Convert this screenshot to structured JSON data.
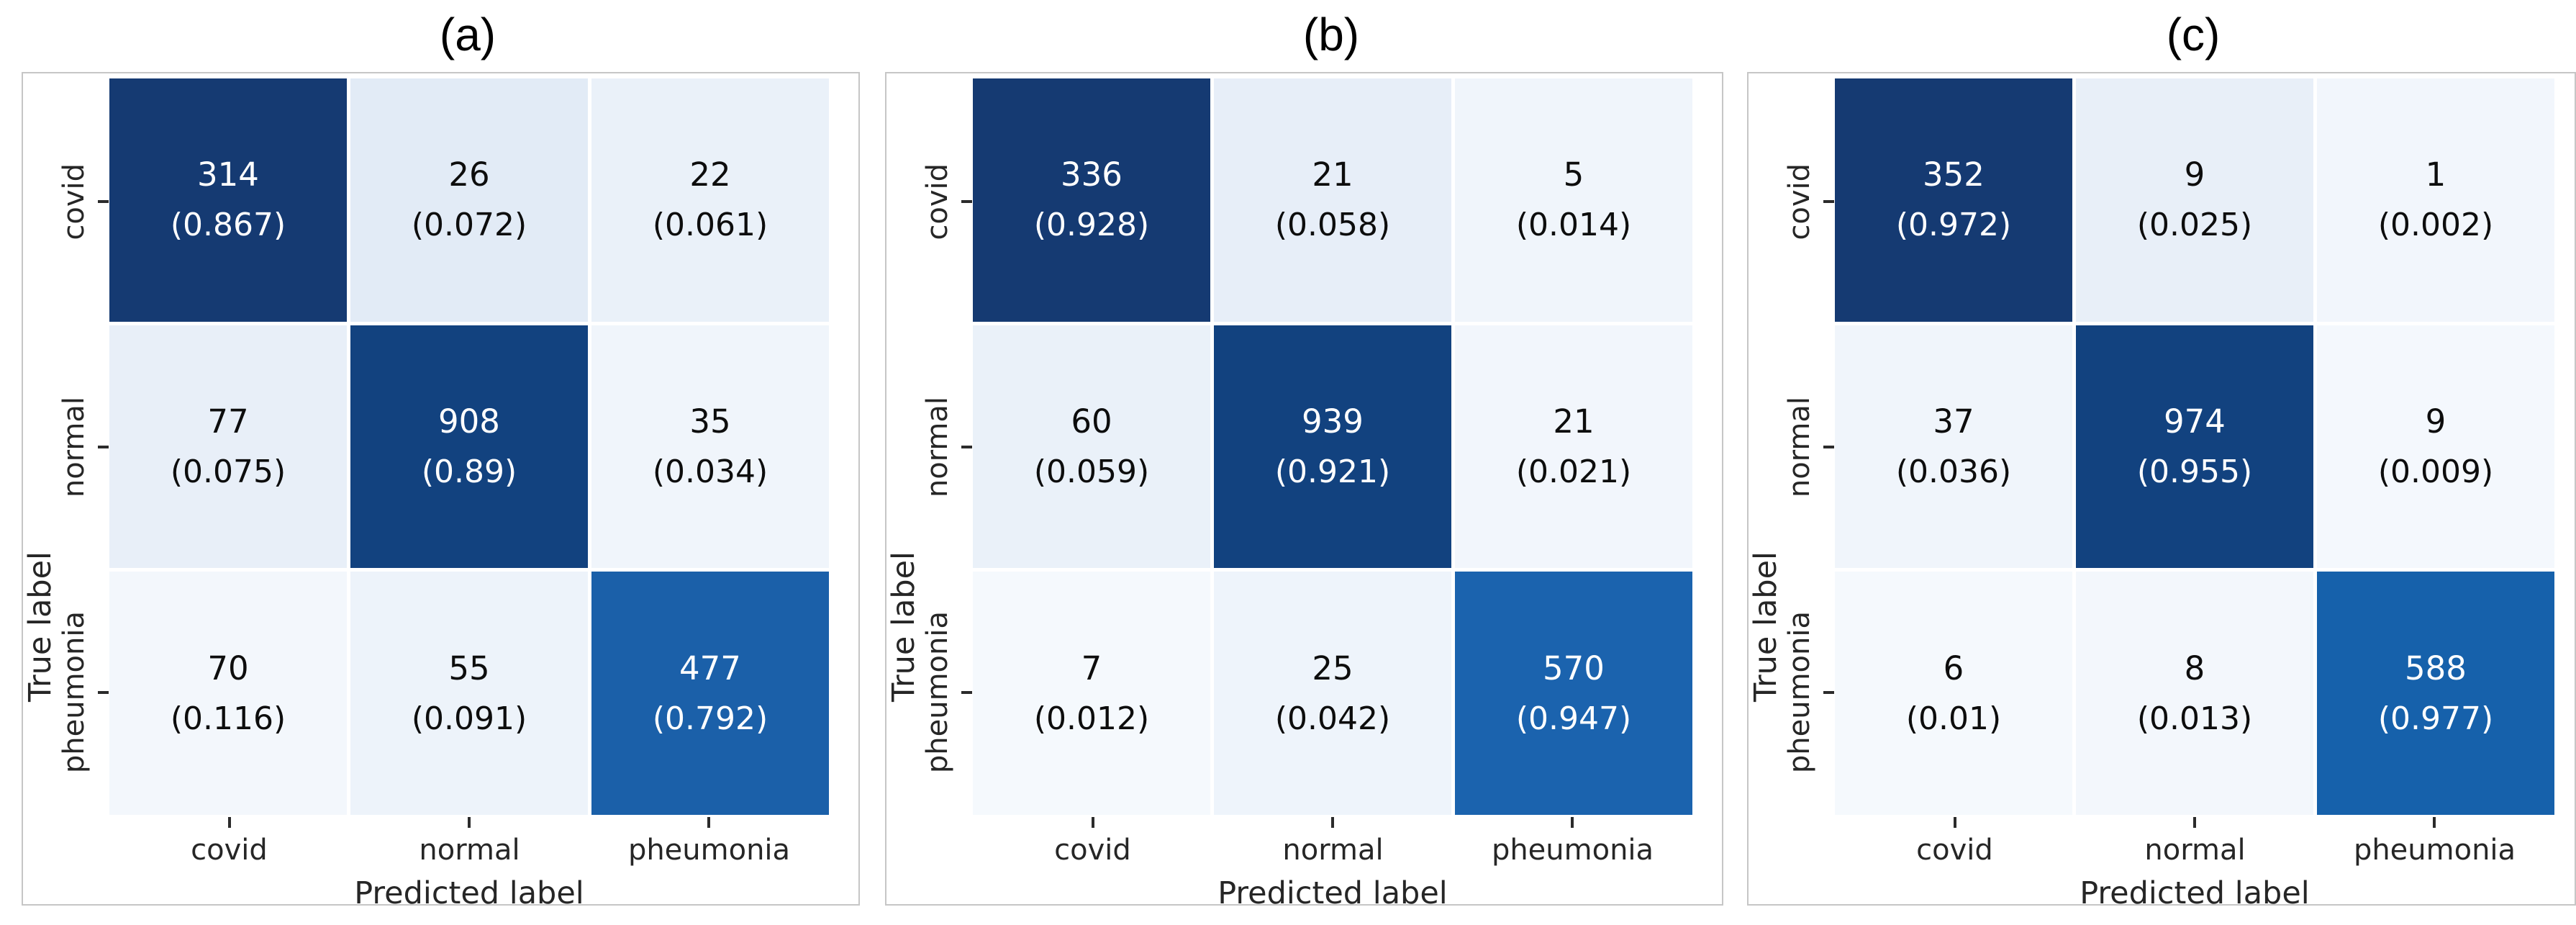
{
  "figure": {
    "background": "#ffffff",
    "panel_border_color": "#c6c6c6",
    "tick_color": "#2b2b2b",
    "axis_text_color": "#262626"
  },
  "axes": {
    "x_label": "Predicted label",
    "y_label": "True label",
    "classes": [
      "covid",
      "normal",
      "pheumonia"
    ]
  },
  "panels": [
    {
      "title": "(a)",
      "x_label": "Predicted label",
      "y_label": "True label",
      "x_ticks": [
        "covid",
        "normal",
        "pheumonia"
      ],
      "y_ticks": [
        "covid",
        "normal",
        "pheumonia"
      ],
      "cells": [
        [
          {
            "count": "314",
            "prop": "(0.867)",
            "bg": "#153a72",
            "fg": "#ffffff"
          },
          {
            "count": "26",
            "prop": "(0.072)",
            "bg": "#e2ebf6",
            "fg": "#0d0d0d"
          },
          {
            "count": "22",
            "prop": "(0.061)",
            "bg": "#eaf1f9",
            "fg": "#0d0d0d"
          }
        ],
        [
          {
            "count": "77",
            "prop": "(0.075)",
            "bg": "#e8eff8",
            "fg": "#0d0d0d"
          },
          {
            "count": "908",
            "prop": "(0.89)",
            "bg": "#12427f",
            "fg": "#ffffff"
          },
          {
            "count": "35",
            "prop": "(0.034)",
            "bg": "#f0f5fb",
            "fg": "#0d0d0d"
          }
        ],
        [
          {
            "count": "70",
            "prop": "(0.116)",
            "bg": "#f3f7fc",
            "fg": "#0d0d0d"
          },
          {
            "count": "55",
            "prop": "(0.091)",
            "bg": "#edf3fa",
            "fg": "#0d0d0d"
          },
          {
            "count": "477",
            "prop": "(0.792)",
            "bg": "#1b60a9",
            "fg": "#ffffff"
          }
        ]
      ]
    },
    {
      "title": "(b)",
      "x_label": "Predicted label",
      "y_label": "True label",
      "x_ticks": [
        "covid",
        "normal",
        "pheumonia"
      ],
      "y_ticks": [
        "covid",
        "normal",
        "pheumonia"
      ],
      "cells": [
        [
          {
            "count": "336",
            "prop": "(0.928)",
            "bg": "#153a72",
            "fg": "#ffffff"
          },
          {
            "count": "21",
            "prop": "(0.058)",
            "bg": "#e7eef8",
            "fg": "#0d0d0d"
          },
          {
            "count": "5",
            "prop": "(0.014)",
            "bg": "#f0f5fb",
            "fg": "#0d0d0d"
          }
        ],
        [
          {
            "count": "60",
            "prop": "(0.059)",
            "bg": "#eaf1f9",
            "fg": "#0d0d0d"
          },
          {
            "count": "939",
            "prop": "(0.921)",
            "bg": "#12427f",
            "fg": "#ffffff"
          },
          {
            "count": "21",
            "prop": "(0.021)",
            "bg": "#f2f6fc",
            "fg": "#0d0d0d"
          }
        ],
        [
          {
            "count": "7",
            "prop": "(0.012)",
            "bg": "#f5f9fd",
            "fg": "#0d0d0d"
          },
          {
            "count": "25",
            "prop": "(0.042)",
            "bg": "#eef4fb",
            "fg": "#0d0d0d"
          },
          {
            "count": "570",
            "prop": "(0.947)",
            "bg": "#1b63ae",
            "fg": "#ffffff"
          }
        ]
      ]
    },
    {
      "title": "(c)",
      "x_label": "Predicted label",
      "y_label": "True label",
      "x_ticks": [
        "covid",
        "normal",
        "pheumonia"
      ],
      "y_ticks": [
        "covid",
        "normal",
        "pheumonia"
      ],
      "cells": [
        [
          {
            "count": "352",
            "prop": "(0.972)",
            "bg": "#153a72",
            "fg": "#ffffff"
          },
          {
            "count": "9",
            "prop": "(0.025)",
            "bg": "#e8eff8",
            "fg": "#0d0d0d"
          },
          {
            "count": "1",
            "prop": "(0.002)",
            "bg": "#f2f6fc",
            "fg": "#0d0d0d"
          }
        ],
        [
          {
            "count": "37",
            "prop": "(0.036)",
            "bg": "#f0f5fb",
            "fg": "#0d0d0d"
          },
          {
            "count": "974",
            "prop": "(0.955)",
            "bg": "#12427f",
            "fg": "#ffffff"
          },
          {
            "count": "9",
            "prop": "(0.009)",
            "bg": "#f4f8fd",
            "fg": "#0d0d0d"
          }
        ],
        [
          {
            "count": "6",
            "prop": "(0.01)",
            "bg": "#f5f9fd",
            "fg": "#0d0d0d"
          },
          {
            "count": "8",
            "prop": "(0.013)",
            "bg": "#f3f7fc",
            "fg": "#0d0d0d"
          },
          {
            "count": "588",
            "prop": "(0.977)",
            "bg": "#1661ab",
            "fg": "#ffffff"
          }
        ]
      ]
    }
  ],
  "chart_data": [
    {
      "type": "heatmap",
      "title": "(a)",
      "xlabel": "Predicted label",
      "ylabel": "True label",
      "x_categories": [
        "covid",
        "normal",
        "pheumonia"
      ],
      "y_categories": [
        "covid",
        "normal",
        "pheumonia"
      ],
      "counts": [
        [
          314,
          26,
          22
        ],
        [
          77,
          908,
          35
        ],
        [
          70,
          55,
          477
        ]
      ],
      "proportions": [
        [
          0.867,
          0.072,
          0.061
        ],
        [
          0.075,
          0.89,
          0.034
        ],
        [
          0.116,
          0.091,
          0.792
        ]
      ],
      "colormap": "Blues",
      "annotation_format": "count over (row-proportion)",
      "legend": "none",
      "grid": false
    },
    {
      "type": "heatmap",
      "title": "(b)",
      "xlabel": "Predicted label",
      "ylabel": "True label",
      "x_categories": [
        "covid",
        "normal",
        "pheumonia"
      ],
      "y_categories": [
        "covid",
        "normal",
        "pheumonia"
      ],
      "counts": [
        [
          336,
          21,
          5
        ],
        [
          60,
          939,
          21
        ],
        [
          7,
          25,
          570
        ]
      ],
      "proportions": [
        [
          0.928,
          0.058,
          0.014
        ],
        [
          0.059,
          0.921,
          0.021
        ],
        [
          0.012,
          0.042,
          0.947
        ]
      ],
      "colormap": "Blues",
      "annotation_format": "count over (row-proportion)",
      "legend": "none",
      "grid": false
    },
    {
      "type": "heatmap",
      "title": "(c)",
      "xlabel": "Predicted label",
      "ylabel": "True label",
      "x_categories": [
        "covid",
        "normal",
        "pheumonia"
      ],
      "y_categories": [
        "covid",
        "normal",
        "pheumonia"
      ],
      "counts": [
        [
          352,
          9,
          1
        ],
        [
          37,
          974,
          9
        ],
        [
          6,
          8,
          588
        ]
      ],
      "proportions": [
        [
          0.972,
          0.025,
          0.002
        ],
        [
          0.036,
          0.955,
          0.009
        ],
        [
          0.01,
          0.013,
          0.977
        ]
      ],
      "colormap": "Blues",
      "annotation_format": "count over (row-proportion)",
      "legend": "none",
      "grid": false
    }
  ]
}
